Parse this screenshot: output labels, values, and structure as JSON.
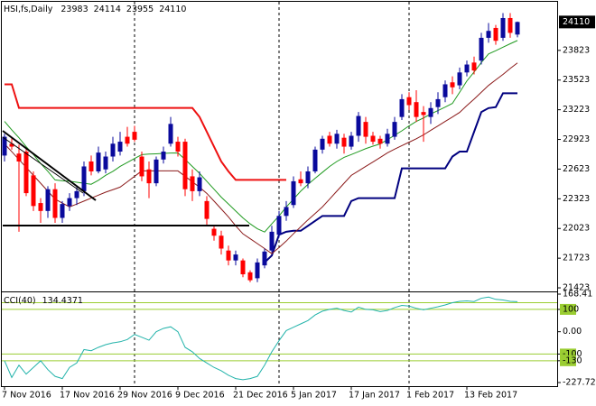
{
  "chart_data": [
    {
      "type": "candlestick",
      "title": "HSI,fs,Daily",
      "categories": [
        "7 Nov 2016",
        null,
        null,
        null,
        null,
        null,
        null,
        null,
        "17 Nov 2016",
        null,
        null,
        null,
        null,
        null,
        null,
        null,
        "29 Nov 2016",
        null,
        null,
        null,
        null,
        null,
        null,
        null,
        "9 Dec 2016",
        null,
        null,
        null,
        null,
        null,
        null,
        null,
        "21 Dec 2016",
        null,
        null,
        null,
        null,
        null,
        null,
        null,
        "5 Jan 2017",
        null,
        null,
        null,
        null,
        null,
        null,
        null,
        "17 Jan 2017",
        null,
        null,
        null,
        null,
        null,
        null,
        null,
        "1 Feb 2017",
        null,
        null,
        null,
        null,
        null,
        null,
        null,
        "13 Feb 2017",
        null,
        null,
        null,
        null,
        null,
        null,
        null
      ],
      "open": [
        22760,
        22880,
        22780,
        22800,
        22560,
        22280,
        22200,
        22420,
        22130,
        22250,
        22330,
        22400,
        22700,
        22600,
        22620,
        22750,
        22800,
        22950,
        23000,
        22750,
        22620,
        22480,
        22720,
        22880,
        22900,
        22900,
        22550,
        22400,
        22300,
        22020,
        21950,
        21800,
        21700,
        21700,
        21580,
        21520,
        21650,
        21800,
        21960,
        22150,
        22260,
        22520,
        22480,
        22600,
        22820,
        22960,
        22880,
        22940,
        22850,
        22960,
        23100,
        22960,
        22930,
        22880,
        22950,
        23150,
        23350,
        23300,
        23200,
        23150,
        23250,
        23350,
        23500,
        23470,
        23600,
        23700,
        23720,
        23950,
        24050,
        23950,
        24150,
        23983
      ],
      "high": [
        22980,
        22950,
        22870,
        22830,
        22600,
        22330,
        22450,
        22480,
        22300,
        22380,
        22440,
        22700,
        22760,
        22850,
        22800,
        22950,
        23000,
        23050,
        23060,
        22800,
        22700,
        22750,
        22850,
        23150,
        22950,
        22930,
        22620,
        22600,
        22350,
        22060,
        22000,
        21850,
        21800,
        21720,
        21600,
        21720,
        21820,
        22050,
        22200,
        22300,
        22550,
        22600,
        22650,
        22850,
        22960,
        23000,
        23020,
        22980,
        23000,
        23200,
        23150,
        23000,
        22960,
        23030,
        23150,
        23380,
        23400,
        23420,
        23260,
        23300,
        23400,
        23520,
        23560,
        23650,
        23720,
        23760,
        24000,
        24100,
        24080,
        24200,
        24200,
        24114
      ],
      "low": [
        22700,
        22820,
        21990,
        22350,
        22200,
        22080,
        22130,
        22080,
        22080,
        22200,
        22260,
        22350,
        22560,
        22580,
        22580,
        22700,
        22760,
        22850,
        22900,
        22500,
        22330,
        22450,
        22680,
        22850,
        22750,
        22350,
        22300,
        22350,
        22050,
        21900,
        21760,
        21650,
        21650,
        21530,
        21480,
        21480,
        21620,
        21780,
        21930,
        22100,
        22230,
        22450,
        22430,
        22580,
        22780,
        22850,
        22830,
        22780,
        22820,
        22900,
        22880,
        22870,
        22830,
        22850,
        22920,
        23120,
        23220,
        23100,
        22900,
        23080,
        23180,
        23300,
        23380,
        23430,
        23560,
        23580,
        23680,
        23900,
        23880,
        23920,
        23950,
        23955
      ],
      "close": [
        22950,
        22850,
        22700,
        22380,
        22250,
        22200,
        22420,
        22130,
        22270,
        22330,
        22400,
        22650,
        22600,
        22790,
        22750,
        22880,
        22900,
        22880,
        22920,
        22550,
        22480,
        22720,
        22800,
        23080,
        22800,
        22420,
        22400,
        22540,
        22120,
        21950,
        21820,
        21700,
        21760,
        21560,
        21500,
        21680,
        21790,
        21990,
        22150,
        22240,
        22500,
        22480,
        22600,
        22820,
        22930,
        22880,
        22980,
        22850,
        22960,
        23160,
        22950,
        22900,
        22880,
        22980,
        23100,
        23330,
        23270,
        23150,
        23170,
        23240,
        23330,
        23480,
        23450,
        23600,
        23680,
        23620,
        23950,
        24020,
        23920,
        24150,
        24000,
        24110
      ],
      "up_color": "#0a0a9c",
      "down_color": "#ff0000",
      "series": [
        {
          "color": "#ee1111",
          "values": [
            23480,
            23480,
            23241,
            23241,
            23241,
            23241,
            23241,
            23241,
            23241,
            23241,
            23241,
            23241,
            23241,
            23241,
            23241,
            23241,
            23241,
            23241,
            23241,
            23241,
            23241,
            23241,
            23241,
            23241,
            23241,
            23241,
            23241,
            23150,
            23000,
            22850,
            22700,
            22600,
            22514,
            22514,
            22514,
            22514,
            22514,
            22514,
            22514,
            22514,
            null,
            null,
            null,
            null,
            null,
            null,
            null,
            null,
            null,
            null,
            null,
            null,
            null,
            null,
            null,
            null,
            null,
            null,
            null,
            null,
            null,
            null,
            null,
            null,
            null,
            null,
            null,
            null,
            null,
            null,
            null,
            null
          ]
        },
        {
          "color": "#00007f",
          "values": [
            null,
            null,
            null,
            null,
            null,
            null,
            null,
            null,
            null,
            null,
            null,
            null,
            null,
            null,
            null,
            null,
            null,
            null,
            null,
            null,
            null,
            null,
            null,
            null,
            null,
            null,
            null,
            null,
            null,
            null,
            null,
            null,
            null,
            null,
            null,
            null,
            21680,
            21750,
            21960,
            21990,
            22000,
            22000,
            22050,
            22100,
            22150,
            22150,
            22150,
            22150,
            22300,
            22330,
            22330,
            22330,
            22330,
            22330,
            22330,
            22630,
            22630,
            22630,
            22630,
            22630,
            22630,
            22630,
            22750,
            22800,
            22800,
            23000,
            23200,
            23240,
            23250,
            23390,
            23390,
            23390
          ]
        },
        {
          "color": "#1f9a1f",
          "values": [
            23105,
            23020,
            22940,
            22850,
            22770,
            22680,
            22600,
            22514,
            22505,
            22500,
            22490,
            22480,
            22470,
            22510,
            22560,
            22600,
            22650,
            22690,
            22730,
            22770,
            22775,
            22778,
            22782,
            22785,
            22787,
            22720,
            22650,
            22580,
            22500,
            22420,
            22340,
            22270,
            22200,
            22130,
            22070,
            22020,
            21987,
            22070,
            22150,
            22240,
            22320,
            22400,
            22469,
            22530,
            22590,
            22650,
            22700,
            22742,
            22770,
            22800,
            22830,
            22855,
            22878,
            22920,
            22965,
            23010,
            23060,
            23105,
            23140,
            23180,
            23215,
            23250,
            23287,
            23400,
            23514,
            23605,
            23700,
            23787,
            23820,
            23855,
            23890,
            23923
          ]
        },
        {
          "color": "#8b1a1a",
          "values": [
            22878,
            22800,
            22720,
            22640,
            22560,
            22480,
            22400,
            22320,
            22280,
            22241,
            22270,
            22300,
            22330,
            22360,
            22390,
            22415,
            22441,
            22495,
            22550,
            22605,
            22605,
            22605,
            22605,
            22605,
            22605,
            22550,
            22495,
            22440,
            22378,
            22300,
            22220,
            22140,
            22050,
            21969,
            21920,
            21870,
            21820,
            21769,
            21830,
            21896,
            21970,
            22040,
            22110,
            22175,
            22241,
            22320,
            22400,
            22480,
            22560,
            22605,
            22650,
            22695,
            22740,
            22787,
            22825,
            22860,
            22895,
            22930,
            22969,
            23015,
            23060,
            23105,
            23150,
            23196,
            23265,
            23330,
            23400,
            23469,
            23525,
            23580,
            23640,
            23696
          ]
        }
      ],
      "ylim": [
        21396,
        24314
      ],
      "yticks": [
        23823,
        23523,
        23223,
        22923,
        22623,
        22323,
        22023,
        21723,
        21423
      ]
    },
    {
      "type": "line",
      "title": "CCI(40)",
      "color": "#22b3aa",
      "values": [
        -130,
        -205,
        -150,
        -190,
        -160,
        -130,
        -170,
        -200,
        -210,
        -160,
        -140,
        -80,
        -85,
        -70,
        -58,
        -50,
        -45,
        -35,
        -12,
        -25,
        -38,
        0,
        15,
        22,
        0,
        -70,
        -90,
        -120,
        -140,
        -160,
        -175,
        -195,
        -210,
        -215,
        -210,
        -200,
        -150,
        -90,
        -40,
        5,
        20,
        35,
        50,
        75,
        92,
        100,
        105,
        95,
        88,
        110,
        100,
        98,
        90,
        95,
        108,
        118,
        115,
        105,
        98,
        105,
        112,
        120,
        130,
        136,
        138,
        135,
        150,
        155,
        145,
        142,
        136,
        134.4371
      ],
      "ylim": [
        -227.722,
        168.41
      ],
      "yticks": [
        168.41,
        100,
        {
          "value": 0,
          "label": "0.00"
        },
        -100,
        -130,
        -227.722
      ],
      "levels": [
        130,
        100,
        -100,
        -130
      ],
      "level_color": "#9acd32"
    }
  ]
}
